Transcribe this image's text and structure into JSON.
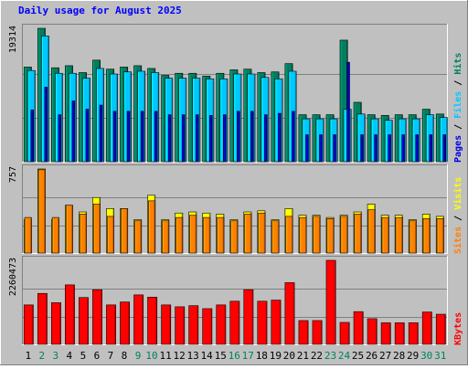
{
  "chart_data": {
    "type": "bar",
    "title": "Daily usage for August 2025",
    "categories": [
      "1",
      "2",
      "3",
      "4",
      "5",
      "6",
      "7",
      "8",
      "9",
      "10",
      "11",
      "12",
      "13",
      "14",
      "15",
      "16",
      "17",
      "18",
      "19",
      "20",
      "21",
      "22",
      "23",
      "24",
      "25",
      "26",
      "27",
      "28",
      "29",
      "30",
      "31"
    ],
    "weekend_days": [
      2,
      3,
      9,
      10,
      16,
      17,
      23,
      24,
      30,
      31
    ],
    "panels": [
      {
        "name": "hits-files-pages",
        "ymax_label": "19314",
        "ymax": 19314,
        "right_labels": [
          "Pages",
          "Files",
          "Hits"
        ],
        "series": [
          {
            "name": "Hits",
            "color": "#007f5f",
            "values": [
              13700,
              19314,
              13600,
              13900,
              12900,
              14700,
              13400,
              13700,
              13900,
              13500,
              12500,
              12800,
              12800,
              12400,
              12800,
              13300,
              13400,
              12900,
              13000,
              14200,
              6800,
              6800,
              6800,
              17600,
              8600,
              6800,
              6700,
              6800,
              6800,
              7600,
              6900
            ]
          },
          {
            "name": "Files",
            "color": "#00c8ff",
            "values": [
              13200,
              18200,
              12800,
              12800,
              12100,
              13500,
              12700,
              13000,
              13100,
              12900,
              12100,
              12100,
              12100,
              12000,
              12000,
              12700,
              12700,
              12200,
              12000,
              13100,
              6200,
              6200,
              6200,
              7600,
              6900,
              6200,
              6000,
              6200,
              6200,
              6800,
              6400
            ]
          },
          {
            "name": "Pages",
            "color": "#0000e0",
            "values": [
              7500,
              10800,
              6800,
              8800,
              7600,
              8200,
              7300,
              7300,
              7300,
              7300,
              6800,
              6800,
              6800,
              6700,
              6800,
              7300,
              7300,
              6800,
              7000,
              7300,
              3900,
              3900,
              3900,
              14400,
              3900,
              3900,
              3900,
              3900,
              3900,
              3900,
              3900
            ]
          }
        ]
      },
      {
        "name": "visits-sites",
        "ymax_label": "757",
        "ymax": 757,
        "right_labels": [
          "Sites",
          "Visits"
        ],
        "series": [
          {
            "name": "Visits",
            "color": "#ffff00",
            "values": [
              300,
              757,
              300,
              430,
              370,
              500,
              400,
              400,
              300,
              520,
              300,
              360,
              370,
              360,
              350,
              300,
              370,
              380,
              300,
              400,
              340,
              340,
              320,
              340,
              370,
              440,
              340,
              340,
              300,
              350,
              330
            ]
          },
          {
            "name": "Sites",
            "color": "#ff8000",
            "values": [
              320,
              750,
              320,
              430,
              350,
              440,
              330,
              400,
              290,
              470,
              290,
              320,
              340,
              320,
              320,
              290,
              350,
              360,
              290,
              330,
              320,
              330,
              310,
              330,
              350,
              390,
              320,
              320,
              290,
              310,
              310
            ]
          }
        ]
      },
      {
        "name": "kbytes",
        "ymax_label": "2260473",
        "ymax": 2260473,
        "right_labels": [
          "KBytes"
        ],
        "series": [
          {
            "name": "KBytes",
            "color": "#ff0000",
            "values": [
              1060000,
              1370000,
              1120000,
              1600000,
              1260000,
              1470000,
              1060000,
              1140000,
              1330000,
              1270000,
              1060000,
              1010000,
              1040000,
              960000,
              1060000,
              1160000,
              1470000,
              1160000,
              1190000,
              1660000,
              640000,
              640000,
              2260473,
              590000,
              880000,
              690000,
              580000,
              580000,
              580000,
              870000,
              810000
            ]
          }
        ]
      }
    ]
  },
  "colors": {
    "background": "#c0c0c0",
    "title": "#0000ff",
    "plot_bg": "#c0c0c0",
    "gridline": "#808080",
    "weekday_label": "#000000",
    "weekend_label": "#00805f"
  }
}
